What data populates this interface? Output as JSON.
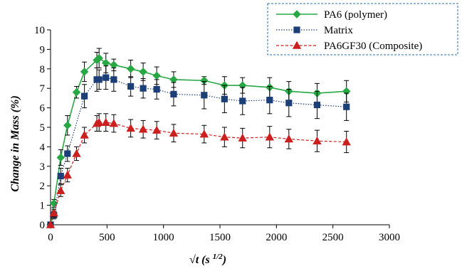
{
  "chart_data": {
    "type": "line",
    "xlabel": "√t (s 1/2)",
    "xlabel_main": "√",
    "xlabel_var": "t",
    "xlabel_unit": " (s ",
    "xlabel_exp": "1/2",
    "xlabel_close": ")",
    "ylabel": "Change in Mass (%)",
    "xlim": [
      0,
      3000
    ],
    "ylim": [
      0,
      10
    ],
    "xticks": [
      "0",
      "500",
      "1000",
      "1500",
      "2000",
      "2500",
      "3000"
    ],
    "yticks": [
      "0",
      "1",
      "2",
      "3",
      "4",
      "5",
      "6",
      "7",
      "8",
      "9",
      "10"
    ],
    "grid": false,
    "legend": "top-right",
    "series": [
      {
        "name": "PA6 (polymer)",
        "color": "#27a844",
        "marker": "diamond",
        "line_style": "solid",
        "x": [
          0,
          30,
          90,
          150,
          230,
          300,
          410,
          430,
          490,
          560,
          710,
          820,
          940,
          1090,
          1360,
          1540,
          1700,
          1940,
          2110,
          2360,
          2620
        ],
        "y": [
          0.0,
          1.1,
          3.45,
          5.1,
          6.8,
          7.85,
          8.45,
          8.55,
          8.3,
          8.2,
          8.0,
          7.85,
          7.65,
          7.45,
          7.4,
          7.15,
          7.15,
          7.05,
          6.85,
          6.75,
          6.85
        ],
        "err": [
          0.1,
          0.2,
          0.4,
          0.5,
          0.3,
          0.5,
          0.4,
          0.5,
          0.5,
          0.3,
          0.45,
          0.45,
          0.45,
          0.4,
          0.2,
          0.45,
          0.4,
          0.5,
          0.5,
          0.5,
          0.55
        ]
      },
      {
        "name": "Matrix",
        "color": "#1c3f78",
        "marker": "square",
        "line_style": "dotted",
        "x": [
          0,
          30,
          90,
          150,
          300,
          410,
          430,
          490,
          560,
          710,
          820,
          940,
          1090,
          1360,
          1540,
          1700,
          1940,
          2110,
          2360,
          2620
        ],
        "y": [
          0.0,
          0.5,
          2.5,
          3.65,
          6.6,
          7.45,
          7.45,
          7.55,
          7.45,
          7.1,
          7.0,
          6.95,
          6.7,
          6.65,
          6.45,
          6.35,
          6.4,
          6.25,
          6.15,
          6.05
        ],
        "err": [
          0.1,
          0.2,
          0.4,
          0.4,
          0.6,
          0.6,
          0.5,
          0.6,
          0.6,
          0.5,
          0.5,
          0.5,
          0.6,
          0.7,
          0.7,
          0.7,
          0.7,
          0.7,
          0.7,
          0.7
        ]
      },
      {
        "name": "PA6GF30 (Composite)",
        "color": "#cc1f1f",
        "marker": "triangle",
        "line_style": "dashed",
        "x": [
          0,
          30,
          90,
          150,
          230,
          300,
          410,
          430,
          490,
          560,
          710,
          820,
          940,
          1090,
          1360,
          1540,
          1700,
          1940,
          2110,
          2360,
          2620
        ],
        "y": [
          0.0,
          0.6,
          1.75,
          2.55,
          3.65,
          4.6,
          5.2,
          5.25,
          5.25,
          5.2,
          4.95,
          4.9,
          4.85,
          4.7,
          4.65,
          4.5,
          4.45,
          4.5,
          4.4,
          4.3,
          4.25
        ],
        "err": [
          0.1,
          0.2,
          0.3,
          0.35,
          0.35,
          0.4,
          0.4,
          0.45,
          0.45,
          0.45,
          0.45,
          0.45,
          0.45,
          0.45,
          0.45,
          0.5,
          0.5,
          0.55,
          0.5,
          0.55,
          0.55
        ]
      }
    ]
  }
}
